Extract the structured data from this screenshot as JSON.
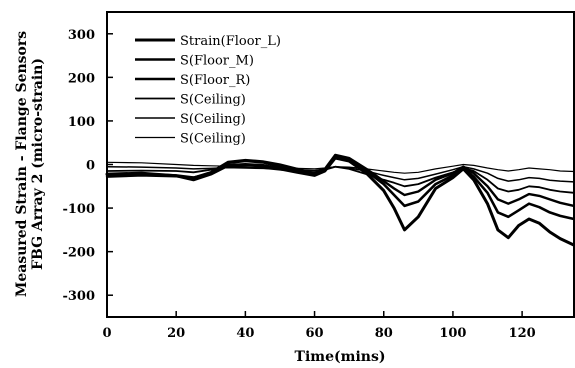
{
  "chart_data": {
    "type": "line",
    "xlabel": "Time(mins)",
    "ylabel": [
      "Measured Strain - Flange Sensors",
      "FBG Array 2 (micro-strain)"
    ],
    "xlim": [
      0,
      135
    ],
    "ylim": [
      -350,
      350
    ],
    "xticks": [
      0,
      20,
      40,
      60,
      80,
      100,
      120
    ],
    "yticks": [
      300,
      200,
      100,
      0,
      -100,
      -200,
      -300
    ],
    "grid": false,
    "legend_position": "top-left",
    "series": [
      {
        "name": "Strain(Floor_L)",
        "color": "#000000",
        "x": [
          0,
          10,
          20,
          25,
          30,
          35,
          40,
          45,
          50,
          55,
          60,
          63,
          66,
          70,
          75,
          80,
          83,
          86,
          90,
          95,
          100,
          103,
          106,
          110,
          113,
          116,
          119,
          122,
          125,
          128,
          131,
          135
        ],
        "y": [
          -22,
          -20,
          -26,
          -35,
          -22,
          -2,
          0,
          -2,
          -10,
          -18,
          -25,
          -15,
          15,
          8,
          -20,
          -60,
          -100,
          -150,
          -120,
          -55,
          -30,
          -10,
          -35,
          -90,
          -150,
          -168,
          -140,
          -125,
          -135,
          -155,
          -170,
          -185
        ]
      },
      {
        "name": "S(Floor_M)",
        "color": "#000000",
        "x": [
          0,
          10,
          20,
          25,
          30,
          35,
          40,
          45,
          50,
          55,
          60,
          63,
          66,
          70,
          75,
          80,
          83,
          86,
          90,
          95,
          100,
          103,
          106,
          110,
          113,
          116,
          119,
          122,
          125,
          128,
          131,
          135
        ],
        "y": [
          -24,
          -22,
          -25,
          -30,
          -20,
          4,
          8,
          5,
          -5,
          -15,
          -22,
          -12,
          20,
          12,
          -15,
          -45,
          -70,
          -95,
          -85,
          -45,
          -25,
          -8,
          -28,
          -65,
          -110,
          -120,
          -105,
          -90,
          -98,
          -110,
          -118,
          -125
        ]
      },
      {
        "name": "S(Floor_R)",
        "color": "#000000",
        "x": [
          0,
          10,
          20,
          25,
          30,
          35,
          40,
          45,
          50,
          55,
          60,
          63,
          66,
          70,
          75,
          80,
          83,
          86,
          90,
          95,
          100,
          103,
          106,
          110,
          113,
          116,
          119,
          122,
          125,
          128,
          131,
          135
        ],
        "y": [
          -28,
          -25,
          -27,
          -30,
          -18,
          6,
          10,
          7,
          0,
          -10,
          -20,
          -10,
          22,
          15,
          -10,
          -38,
          -55,
          -70,
          -62,
          -35,
          -20,
          -5,
          -20,
          -50,
          -80,
          -90,
          -80,
          -68,
          -72,
          -80,
          -88,
          -95
        ]
      },
      {
        "name": "S(Ceiling)",
        "color": "#000000",
        "x": [
          0,
          10,
          20,
          25,
          30,
          35,
          40,
          45,
          50,
          55,
          60,
          63,
          66,
          70,
          75,
          80,
          83,
          86,
          90,
          95,
          100,
          103,
          106,
          110,
          113,
          116,
          119,
          122,
          125,
          128,
          131,
          135
        ],
        "y": [
          -15,
          -14,
          -15,
          -18,
          -12,
          -5,
          -6,
          -8,
          -12,
          -15,
          -18,
          -12,
          -5,
          -10,
          -22,
          -35,
          -42,
          -50,
          -45,
          -30,
          -18,
          -8,
          -15,
          -35,
          -55,
          -62,
          -58,
          -50,
          -52,
          -58,
          -62,
          -65
        ]
      },
      {
        "name": "S(Ceiling)",
        "color": "#000000",
        "x": [
          0,
          10,
          20,
          25,
          30,
          35,
          40,
          45,
          50,
          55,
          60,
          63,
          66,
          70,
          75,
          80,
          83,
          86,
          90,
          95,
          100,
          103,
          106,
          110,
          113,
          116,
          119,
          122,
          125,
          128,
          131,
          135
        ],
        "y": [
          -5,
          -6,
          -8,
          -10,
          -9,
          -7,
          -8,
          -9,
          -10,
          -12,
          -14,
          -10,
          -5,
          -8,
          -15,
          -25,
          -30,
          -35,
          -32,
          -22,
          -12,
          -5,
          -10,
          -20,
          -32,
          -38,
          -35,
          -30,
          -32,
          -36,
          -38,
          -40
        ]
      },
      {
        "name": "S(Ceiling)",
        "color": "#000000",
        "x": [
          0,
          10,
          20,
          25,
          30,
          35,
          40,
          45,
          50,
          55,
          60,
          63,
          66,
          70,
          75,
          80,
          83,
          86,
          90,
          95,
          100,
          103,
          106,
          110,
          113,
          116,
          119,
          122,
          125,
          128,
          131,
          135
        ],
        "y": [
          5,
          4,
          0,
          -2,
          -3,
          -4,
          -5,
          -6,
          -8,
          -9,
          -10,
          -8,
          -5,
          -6,
          -10,
          -15,
          -18,
          -20,
          -18,
          -10,
          -4,
          0,
          -2,
          -8,
          -12,
          -15,
          -12,
          -8,
          -10,
          -12,
          -15,
          -16
        ]
      }
    ]
  }
}
